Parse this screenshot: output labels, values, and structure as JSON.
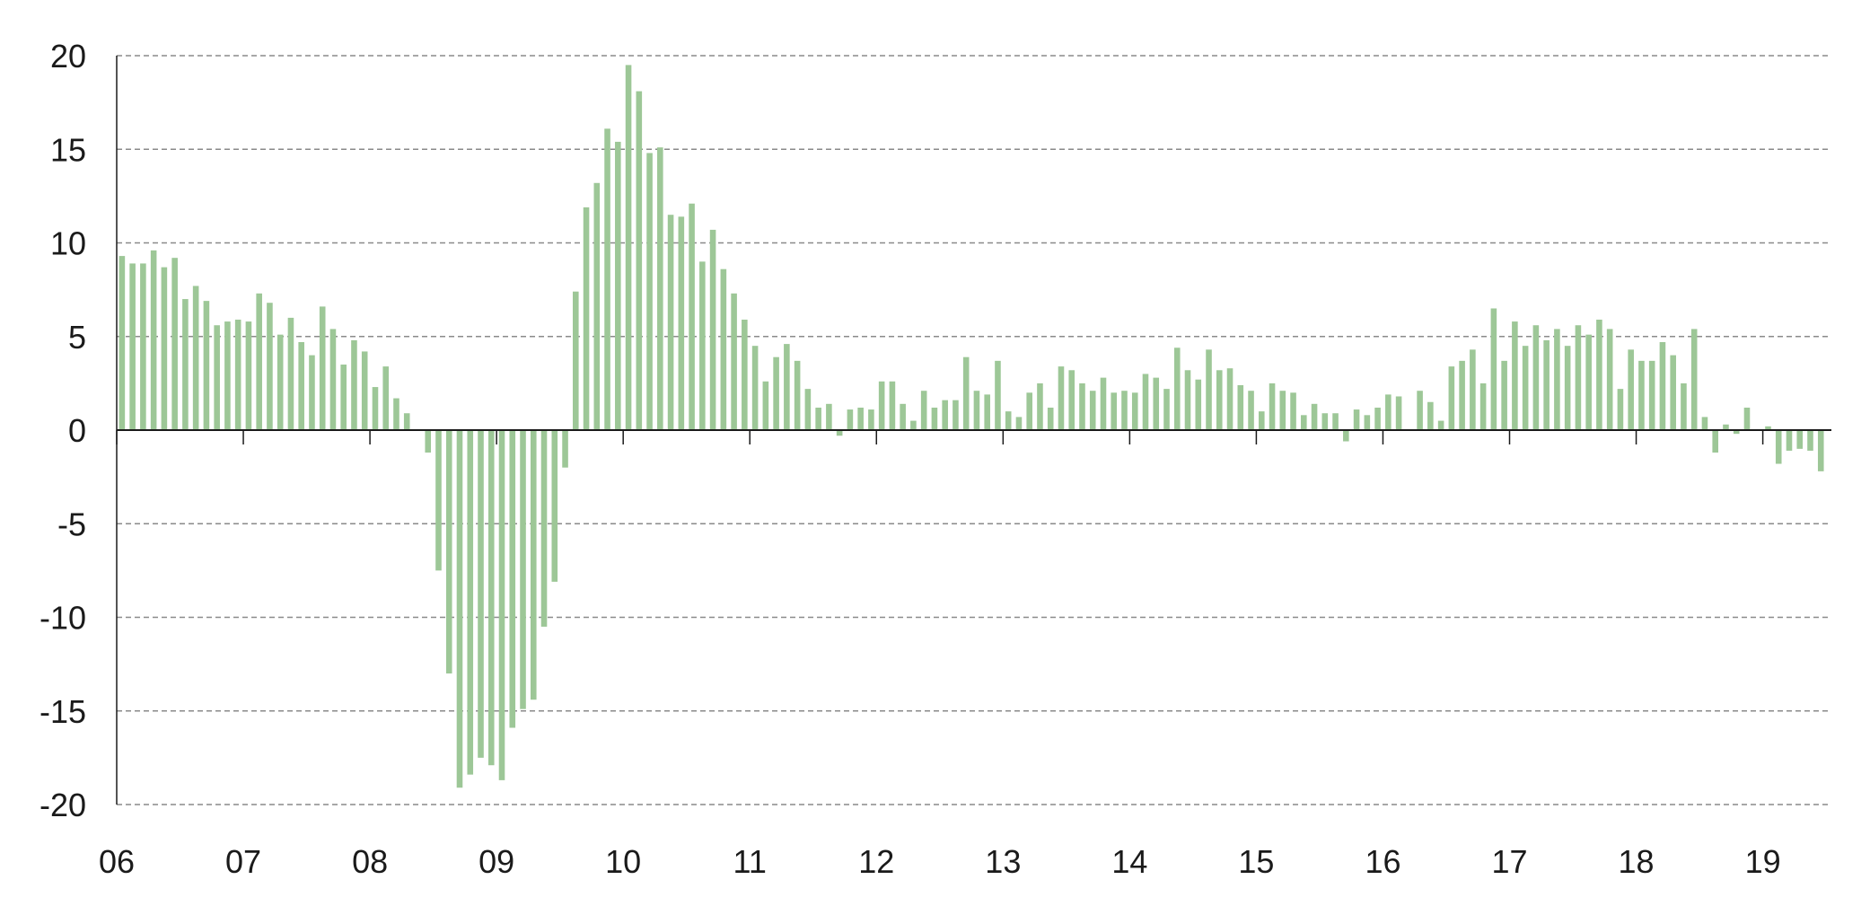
{
  "chart_data": {
    "type": "bar",
    "title": "",
    "xlabel": "",
    "ylabel": "",
    "ylim": [
      -20,
      20
    ],
    "yticks": [
      20,
      15,
      10,
      5,
      0,
      -5,
      -10,
      -15,
      -20
    ],
    "ytick_labels": [
      "20",
      "15",
      "10",
      "5",
      "0",
      "-5",
      "-10",
      "-15",
      "-20"
    ],
    "xtick_labels": [
      "06",
      "07",
      "08",
      "09",
      "10",
      "11",
      "12",
      "13",
      "14",
      "15",
      "16",
      "17",
      "18",
      "19"
    ],
    "grid": "horizontal dashed",
    "bar_color": "#9dc797",
    "axis_color": "#1a1a1a",
    "grid_color": "#8a8a8a",
    "series": [
      {
        "start": "2006-01",
        "frequency": "monthly",
        "values": [
          9.3,
          8.9,
          8.9,
          9.6,
          8.7,
          9.2,
          7.0,
          7.7,
          6.9,
          5.6,
          5.8,
          5.9,
          5.8,
          7.3,
          6.8,
          5.1,
          6.0,
          4.7,
          4.0,
          6.6,
          5.4,
          3.5,
          4.8,
          4.2,
          2.3,
          3.4,
          1.7,
          0.9,
          0.0,
          -1.2,
          -7.5,
          -13.0,
          -19.1,
          -18.4,
          -17.5,
          -17.9,
          -18.7,
          -15.9,
          -14.9,
          -14.4,
          -10.5,
          -8.1,
          -2.0,
          7.4,
          11.9,
          13.2,
          16.1,
          15.4,
          19.5,
          18.1,
          14.8,
          15.1,
          11.5,
          11.4,
          12.1,
          9.0,
          10.7,
          8.6,
          7.3,
          5.9,
          4.5,
          2.6,
          3.9,
          4.6,
          3.7,
          2.2,
          1.2,
          1.4,
          -0.3,
          1.1,
          1.2,
          1.1,
          2.6,
          2.6,
          1.4,
          0.5,
          2.1,
          1.2,
          1.6,
          1.6,
          3.9,
          2.1,
          1.9,
          3.7,
          1.0,
          0.7,
          2.0,
          2.5,
          1.2,
          3.4,
          3.2,
          2.5,
          2.1,
          2.8,
          2.0,
          2.1,
          2.0,
          3.0,
          2.8,
          2.2,
          4.4,
          3.2,
          2.7,
          4.3,
          3.2,
          3.3,
          2.4,
          2.1,
          1.0,
          2.5,
          2.1,
          2.0,
          0.8,
          1.4,
          0.9,
          0.9,
          -0.6,
          1.1,
          0.8,
          1.2,
          1.9,
          1.8,
          0.0,
          2.1,
          1.5,
          0.5,
          3.4,
          3.7,
          4.3,
          2.5,
          6.5,
          3.7,
          5.8,
          4.5,
          5.6,
          4.8,
          5.4,
          4.5,
          5.6,
          5.1,
          5.9,
          5.4,
          2.2,
          4.3,
          3.7,
          3.7,
          4.7,
          4.0,
          2.5,
          5.4,
          0.7,
          -1.2,
          0.3,
          -0.2,
          1.2,
          0.0,
          0.2,
          -1.8,
          -1.1,
          -1.0,
          -1.1,
          -2.2
        ]
      }
    ]
  }
}
